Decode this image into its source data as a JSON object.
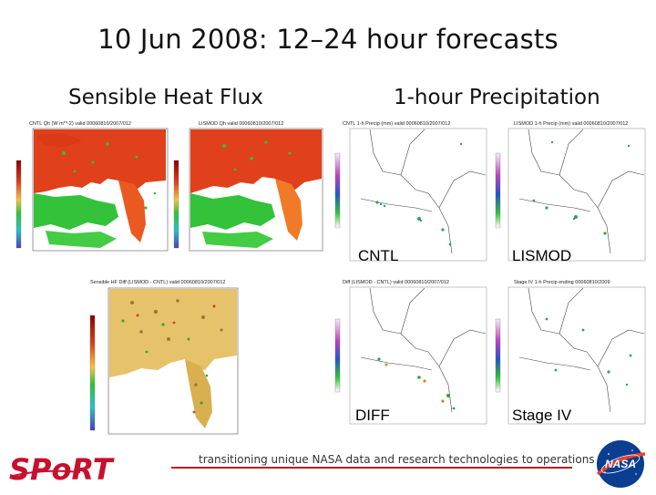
{
  "title": "10 Jun 2008: 12–24 hour forecasts",
  "sections": {
    "left": "Sensible Heat Flux",
    "right": "1-hour Precipitation"
  },
  "panels": {
    "shf_cntl": "CNTL Qh (W m**-2) valid 00060810/2007/012",
    "shf_lismod": "LISMOD Qh valid 00060810/2007/012",
    "shf_diff": "Sensible HF Diff (LISMOD - CNTL) valid 00060810/2007/012",
    "pcp_cntl": "CNTL 1-h Precip (mm) valid 00060810/2007/012",
    "pcp_lismod": "LISMOD 1-h Precip (mm) valid 00060810/2007/012",
    "pcp_diff": "Diff (LISMOD - CNTL) valid 00060810/2007/012",
    "pcp_stage4": "Stage IV 1-h Precip ending 00060810/2009"
  },
  "labels": {
    "cntl": "CNTL",
    "lismod": "LISMOD",
    "diff": "DIFF",
    "stage4": "Stage IV"
  },
  "footer": {
    "tagline": "transitioning unique NASA data and research technologies to operations",
    "logo_text": "SPoRT",
    "nasa_text": "NASA"
  },
  "colors": {
    "heat_high": "#e0401a",
    "heat_mid": "#f07a28",
    "low_green": "#33c23a",
    "water": "#ffffff",
    "brand_red": "#c8102e",
    "nasa_blue": "#0b3d91"
  }
}
